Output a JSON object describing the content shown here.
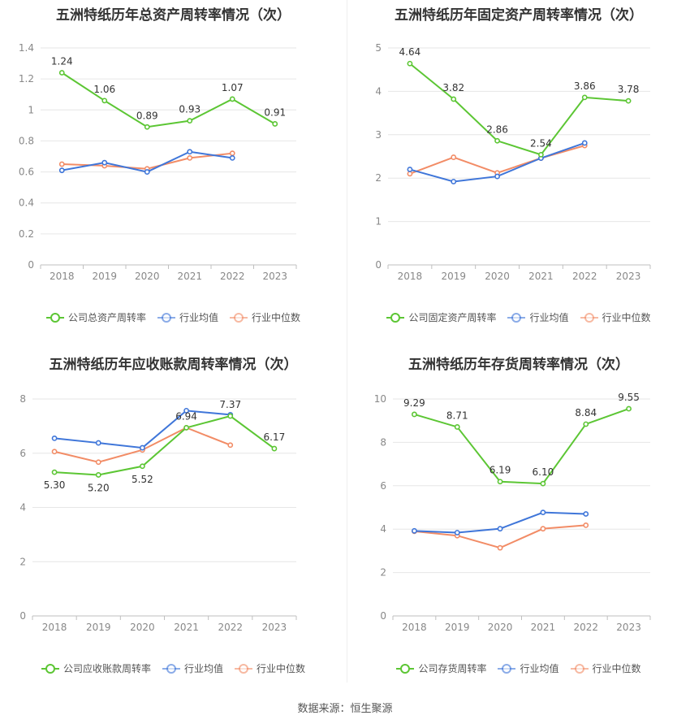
{
  "colors": {
    "company": "#5cc634",
    "average": "#3f76d9",
    "median": "#f28c66",
    "grid": "#e6e6e6",
    "axis": "#bfbfbf",
    "tick": "#888888",
    "label": "#333333"
  },
  "source": "数据来源：恒生聚源",
  "chart_data": [
    {
      "type": "line",
      "title": "五洲特纸历年总资产周转率情况（次）",
      "categories": [
        "2018",
        "2019",
        "2020",
        "2021",
        "2022",
        "2023"
      ],
      "ylim": [
        0,
        1.4
      ],
      "yticks": [
        "0",
        "0.2",
        "0.4",
        "0.6",
        "0.8",
        "1",
        "1.2",
        "1.4"
      ],
      "grid": true,
      "legend_position": "bottom",
      "series": [
        {
          "name": "公司总资产周转率",
          "role": "company",
          "values": [
            1.24,
            1.06,
            0.89,
            0.93,
            1.07,
            0.91
          ],
          "labels": [
            "1.24",
            "1.06",
            "0.89",
            "0.93",
            "1.07",
            "0.91"
          ]
        },
        {
          "name": "行业均值",
          "role": "average",
          "values": [
            0.61,
            0.66,
            0.6,
            0.73,
            0.69,
            null
          ]
        },
        {
          "name": "行业中位数",
          "role": "median",
          "values": [
            0.65,
            0.64,
            0.62,
            0.69,
            0.72,
            null
          ]
        }
      ]
    },
    {
      "type": "line",
      "title": "五洲特纸历年固定资产周转率情况（次）",
      "categories": [
        "2018",
        "2019",
        "2020",
        "2021",
        "2022",
        "2023"
      ],
      "ylim": [
        0,
        5
      ],
      "yticks": [
        "0",
        "1",
        "2",
        "3",
        "4",
        "5"
      ],
      "grid": true,
      "legend_position": "bottom",
      "series": [
        {
          "name": "公司固定资产周转率",
          "role": "company",
          "values": [
            4.64,
            3.82,
            2.86,
            2.54,
            3.86,
            3.78
          ],
          "labels": [
            "4.64",
            "3.82",
            "2.86",
            "2.54",
            "3.86",
            "3.78"
          ]
        },
        {
          "name": "行业均值",
          "role": "average",
          "values": [
            2.2,
            1.92,
            2.04,
            2.46,
            2.81,
            null
          ]
        },
        {
          "name": "行业中位数",
          "role": "median",
          "values": [
            2.1,
            2.48,
            2.12,
            2.46,
            2.75,
            null
          ]
        }
      ]
    },
    {
      "type": "line",
      "title": "五洲特纸历年应收账款周转率情况（次）",
      "categories": [
        "2018",
        "2019",
        "2020",
        "2021",
        "2022",
        "2023"
      ],
      "ylim": [
        0,
        8
      ],
      "yticks": [
        "0",
        "2",
        "4",
        "6",
        "8"
      ],
      "grid": true,
      "legend_position": "bottom",
      "series": [
        {
          "name": "公司应收账款周转率",
          "role": "company",
          "values": [
            5.3,
            5.2,
            5.52,
            6.94,
            7.37,
            6.17
          ],
          "labels": [
            "5.30",
            "5.20",
            "5.52",
            "6.94",
            "7.37",
            "6.17"
          ]
        },
        {
          "name": "行业均值",
          "role": "average",
          "values": [
            6.55,
            6.38,
            6.2,
            7.57,
            7.42,
            null
          ]
        },
        {
          "name": "行业中位数",
          "role": "median",
          "values": [
            6.06,
            5.67,
            6.12,
            6.94,
            6.3,
            null
          ]
        }
      ]
    },
    {
      "type": "line",
      "title": "五洲特纸历年存货周转率情况（次）",
      "categories": [
        "2018",
        "2019",
        "2020",
        "2021",
        "2022",
        "2023"
      ],
      "ylim": [
        0,
        10
      ],
      "yticks": [
        "0",
        "2",
        "4",
        "6",
        "8",
        "10"
      ],
      "grid": true,
      "legend_position": "bottom",
      "series": [
        {
          "name": "公司存货周转率",
          "role": "company",
          "values": [
            9.29,
            8.71,
            6.19,
            6.1,
            8.84,
            9.55
          ],
          "labels": [
            "9.29",
            "8.71",
            "6.19",
            "6.10",
            "8.84",
            "9.55"
          ]
        },
        {
          "name": "行业均值",
          "role": "average",
          "values": [
            3.92,
            3.84,
            4.02,
            4.77,
            4.7,
            null
          ]
        },
        {
          "name": "行业中位数",
          "role": "median",
          "values": [
            3.9,
            3.7,
            3.14,
            4.02,
            4.18,
            null
          ]
        }
      ]
    }
  ]
}
